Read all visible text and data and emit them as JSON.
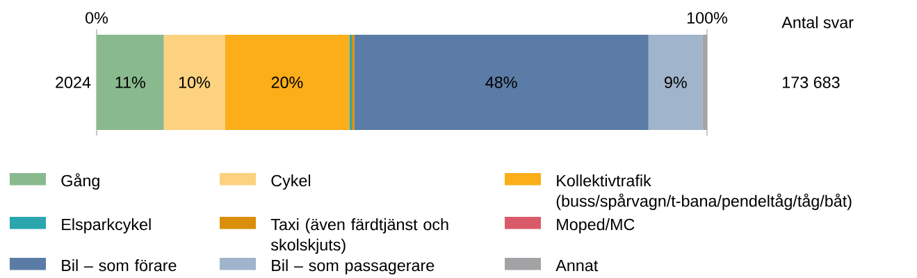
{
  "chart_data": {
    "type": "bar",
    "orientation": "horizontal",
    "stacked": true,
    "categories": [
      "2024"
    ],
    "series": [
      {
        "name": "Gång",
        "color": "#88ba8e",
        "values": [
          11
        ],
        "value_labels": [
          "11%"
        ]
      },
      {
        "name": "Cykel",
        "color": "#fcd280",
        "values": [
          10
        ],
        "value_labels": [
          "10%"
        ]
      },
      {
        "name": "Kollektivtrafik (buss/spårvagn/t-bana/pendeltåg/tåg/båt)",
        "color": "#fbae1a",
        "values": [
          20.4
        ],
        "value_labels": [
          "20%"
        ]
      },
      {
        "name": "Elsparkcykel",
        "color": "#2ba6ae",
        "values": [
          0.4
        ],
        "value_labels": [
          null
        ]
      },
      {
        "name": "Taxi (även färdtjänst och skolskjuts)",
        "color": "#d98f0b",
        "values": [
          0.4
        ],
        "value_labels": [
          null
        ]
      },
      {
        "name": "Moped/MC",
        "color": "#d95b6a",
        "values": [
          null
        ],
        "value_labels": [
          null
        ]
      },
      {
        "name": "Bil – som förare",
        "color": "#5a7ca6",
        "values": [
          48.2
        ],
        "value_labels": [
          "48%"
        ]
      },
      {
        "name": "Bil – som passagerare",
        "color": "#a0b4cc",
        "values": [
          8.9
        ],
        "value_labels": [
          "9%"
        ]
      },
      {
        "name": "Annat",
        "color": "#a3a3a6",
        "values": [
          0.7
        ],
        "value_labels": [
          null
        ]
      }
    ],
    "xlim": [
      0,
      100
    ],
    "xticks": [
      {
        "value": 0,
        "label": "0%"
      },
      {
        "value": 100,
        "label": "100%"
      }
    ],
    "legend": "bottom",
    "annotations": [
      "Antal svar",
      "173 683"
    ]
  }
}
